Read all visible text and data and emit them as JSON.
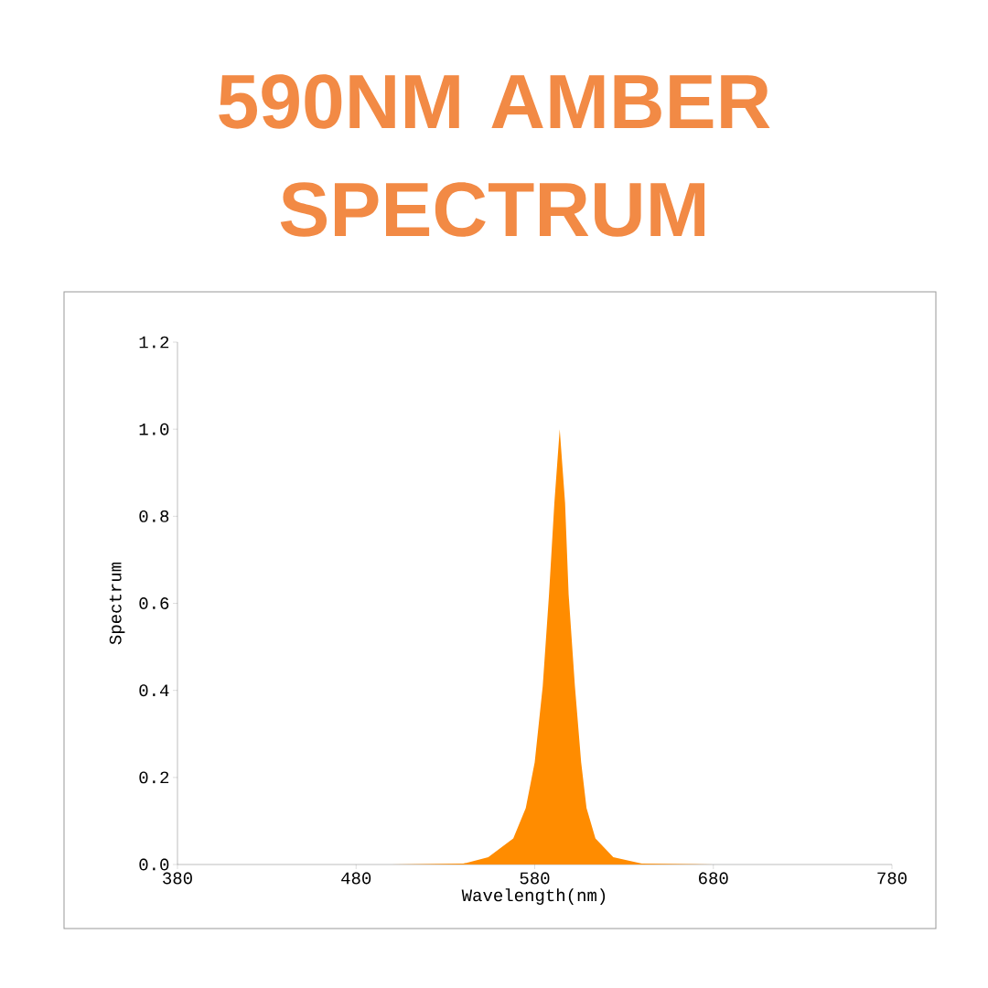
{
  "chart_data": {
    "type": "area",
    "title": "590NM AMBER SPECTRUM",
    "xlabel": "Wavelength(nm)",
    "ylabel": "Spectrum",
    "x": [
      380,
      500,
      540,
      554,
      568,
      575,
      580,
      584.5,
      588,
      591,
      594,
      597,
      599,
      602.5,
      606,
      609,
      614,
      624,
      640,
      680,
      780
    ],
    "values": [
      0,
      0,
      0.002,
      0.017,
      0.06,
      0.13,
      0.235,
      0.41,
      0.62,
      0.83,
      1.0,
      0.83,
      0.62,
      0.41,
      0.235,
      0.13,
      0.06,
      0.017,
      0.002,
      0,
      0
    ],
    "color": "#ff8c00",
    "xlim": [
      380,
      780
    ],
    "ylim": [
      0,
      1.2
    ],
    "xticks": [
      380,
      480,
      580,
      680,
      780
    ],
    "yticks": [
      {
        "value": 0,
        "label": "0.0"
      },
      {
        "value": 0.2,
        "label": "0.2"
      },
      {
        "value": 0.4,
        "label": "0.4"
      },
      {
        "value": 0.6,
        "label": "0.6"
      },
      {
        "value": 0.8,
        "label": "0.8"
      },
      {
        "value": 1.0,
        "label": "1.0"
      },
      {
        "value": 1.2,
        "label": "1.2"
      }
    ]
  }
}
